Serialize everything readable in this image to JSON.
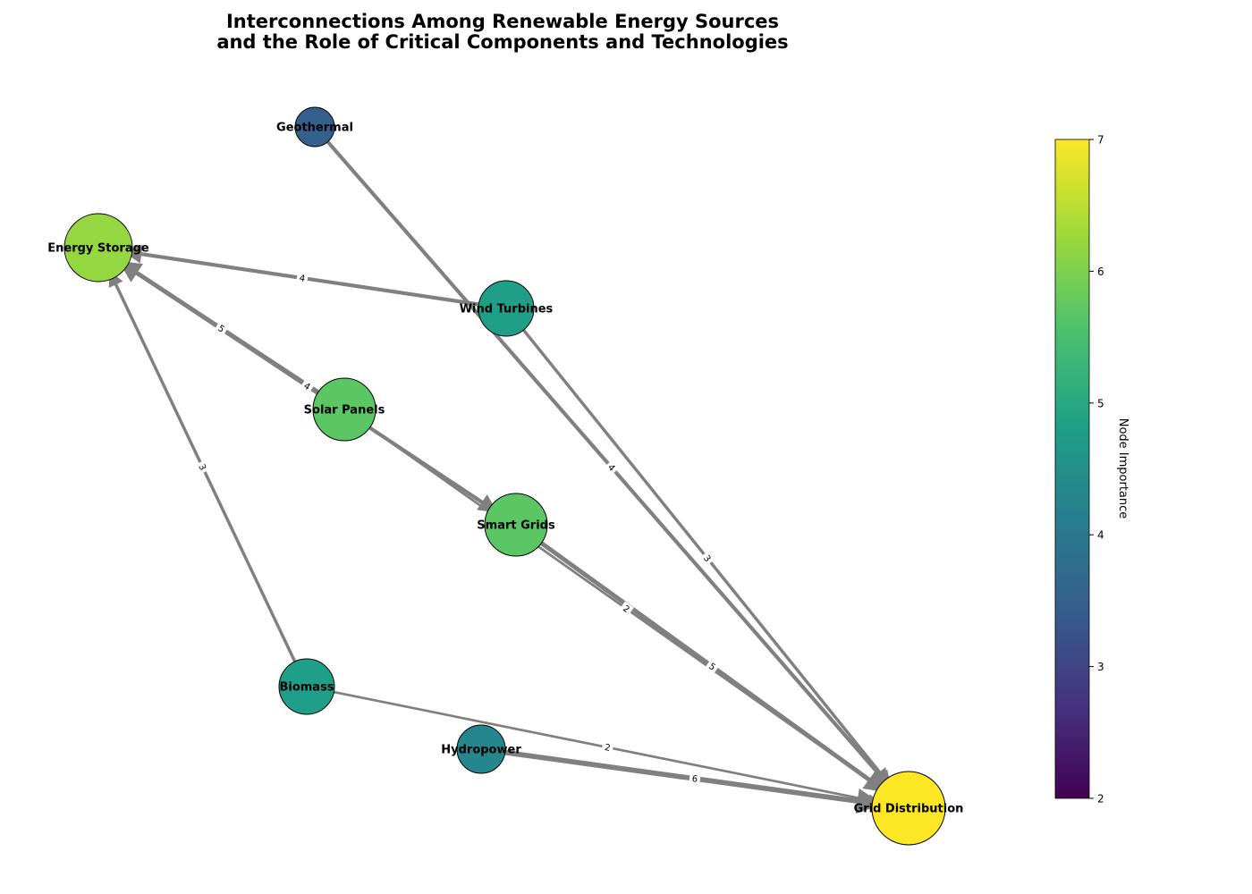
{
  "title": {
    "line1": "Interconnections Among Renewable Energy Sources",
    "line2": "and the Role of Critical Components and Technologies"
  },
  "colorbar": {
    "label": "Node Importance",
    "min": 2,
    "max": 7,
    "ticks": [
      "2",
      "3",
      "4",
      "5",
      "6",
      "7"
    ],
    "colormap": "viridis"
  },
  "nodes": [
    {
      "id": "geothermal",
      "label": "Geothermal",
      "importance": 3.5
    },
    {
      "id": "energy-storage",
      "label": "Energy Storage",
      "importance": 6.2
    },
    {
      "id": "wind-turbines",
      "label": "Wind Turbines",
      "importance": 4.8
    },
    {
      "id": "solar-panels",
      "label": "Solar Panels",
      "importance": 5.7
    },
    {
      "id": "smart-grids",
      "label": "Smart Grids",
      "importance": 5.7
    },
    {
      "id": "biomass",
      "label": "Biomass",
      "importance": 4.8
    },
    {
      "id": "hydropower",
      "label": "Hydropower",
      "importance": 4.3
    },
    {
      "id": "grid-distribution",
      "label": "Grid Distribution",
      "importance": 7.0
    }
  ],
  "edges": [
    {
      "source": "wind-turbines",
      "target": "energy-storage",
      "weight": "4"
    },
    {
      "source": "solar-panels",
      "target": "energy-storage",
      "weight": "5"
    },
    {
      "source": "energy-storage",
      "target": "smart-grids",
      "weight": "4"
    },
    {
      "source": "biomass",
      "target": "energy-storage",
      "weight": "3"
    },
    {
      "source": "geothermal",
      "target": "grid-distribution",
      "weight": "4"
    },
    {
      "source": "wind-turbines",
      "target": "grid-distribution",
      "weight": "3"
    },
    {
      "source": "solar-panels",
      "target": "grid-distribution",
      "weight": "2"
    },
    {
      "source": "smart-grids",
      "target": "grid-distribution",
      "weight": "5"
    },
    {
      "source": "biomass",
      "target": "grid-distribution",
      "weight": "2"
    },
    {
      "source": "hydropower",
      "target": "grid-distribution",
      "weight": "6"
    }
  ]
}
